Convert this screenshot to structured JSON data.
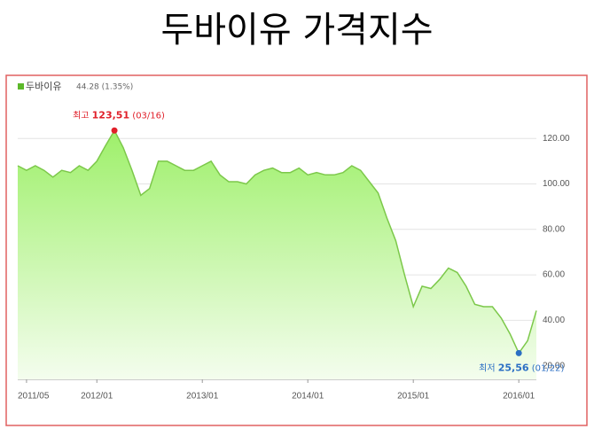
{
  "chart_data": {
    "type": "area",
    "title": "두바이유 가격지수",
    "legend_note": "44.28 (1.35%)",
    "x": [
      "2011/04",
      "2011/05",
      "2011/06",
      "2011/07",
      "2011/08",
      "2011/09",
      "2011/10",
      "2011/11",
      "2011/12",
      "2012/01",
      "2012/02",
      "2012/03",
      "2012/04",
      "2012/05",
      "2012/06",
      "2012/07",
      "2012/08",
      "2012/09",
      "2012/10",
      "2012/11",
      "2012/12",
      "2013/01",
      "2013/02",
      "2013/03",
      "2013/04",
      "2013/05",
      "2013/06",
      "2013/07",
      "2013/08",
      "2013/09",
      "2013/10",
      "2013/11",
      "2013/12",
      "2014/01",
      "2014/02",
      "2014/03",
      "2014/04",
      "2014/05",
      "2014/06",
      "2014/07",
      "2014/08",
      "2014/09",
      "2014/10",
      "2014/11",
      "2014/12",
      "2015/01",
      "2015/02",
      "2015/03",
      "2015/04",
      "2015/05",
      "2015/06",
      "2015/07",
      "2015/08",
      "2015/09",
      "2015/10",
      "2015/11",
      "2015/12",
      "2016/01",
      "2016/02",
      "2016/03"
    ],
    "series": [
      {
        "name": "두바이유",
        "color": "#7cc84a",
        "values": [
          108,
          106,
          108,
          106,
          103,
          106,
          105,
          108,
          106,
          110,
          117,
          123.51,
          116,
          106,
          95,
          98,
          110,
          110,
          108,
          106,
          106,
          108,
          110,
          104,
          101,
          101,
          100,
          104,
          106,
          107,
          105,
          105,
          107,
          104,
          105,
          104,
          104,
          105,
          108,
          106,
          101,
          96,
          85,
          75,
          60,
          46,
          55,
          54,
          58,
          63,
          61,
          55,
          47,
          46,
          46,
          41,
          34,
          25.56,
          31,
          44.28
        ]
      }
    ],
    "annotations": [
      {
        "label": "최고",
        "x": "2012/03",
        "value": 123.51,
        "value_label": "123,51",
        "date": "(03/16)",
        "color": "#e0202a"
      },
      {
        "label": "최저",
        "x": "2016/01",
        "value": 25.56,
        "value_label": "25,56",
        "date": "(01/22)",
        "color": "#2b6fc4"
      }
    ],
    "xlim": [
      "2011/04",
      "2016/03"
    ],
    "xticks": [
      "2011/05",
      "2012/01",
      "2013/01",
      "2014/01",
      "2015/01",
      "2016/01"
    ],
    "ylim": [
      14,
      140
    ],
    "yticks": [
      {
        "value": 20,
        "label": "20.00"
      },
      {
        "value": 40,
        "label": "40.00"
      },
      {
        "value": 60,
        "label": "60.00"
      },
      {
        "value": 80,
        "label": "80.00"
      },
      {
        "value": 100,
        "label": "100.00"
      },
      {
        "value": 120,
        "label": "120.00"
      }
    ],
    "grid": true
  }
}
